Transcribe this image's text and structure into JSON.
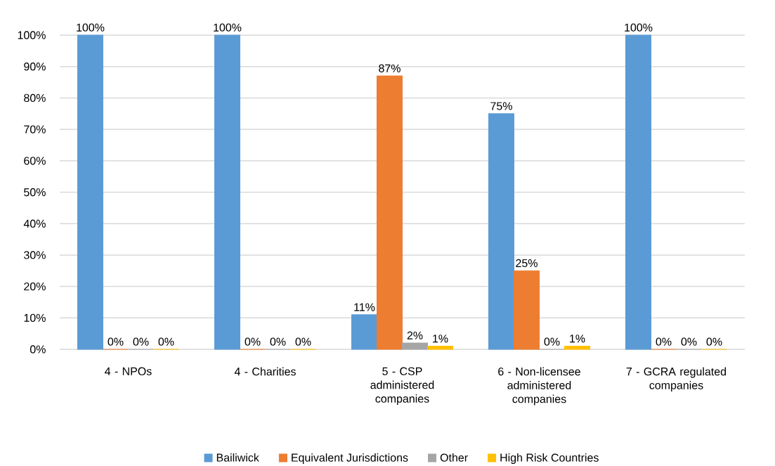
{
  "chart_data": {
    "type": "bar",
    "categories": [
      "4 - NPOs",
      "4 - Charities",
      "5 - CSP administered companies",
      "6 - Non-licensee administered companies",
      "7 - GCRA regulated companies"
    ],
    "series": [
      {
        "name": "Bailiwick",
        "color": "#5b9bd5",
        "values": [
          100,
          100,
          11,
          75,
          100
        ],
        "value_labels": [
          "100%",
          "100%",
          "11%",
          "75%",
          "100%"
        ]
      },
      {
        "name": "Equivalent Jurisdictions",
        "color": "#ed7d31",
        "values": [
          0,
          0,
          87,
          25,
          0
        ],
        "value_labels": [
          "0%",
          "0%",
          "87%",
          "25%",
          "0%"
        ]
      },
      {
        "name": "Other",
        "color": "#a5a5a5",
        "values": [
          0,
          0,
          2,
          0,
          0
        ],
        "value_labels": [
          "0%",
          "0%",
          "2%",
          "0%",
          "0%"
        ]
      },
      {
        "name": "High Risk Countries",
        "color": "#ffc000",
        "values": [
          0,
          0,
          1,
          1,
          0
        ],
        "value_labels": [
          "0%",
          "0%",
          "1%",
          "1%",
          "0%"
        ]
      }
    ],
    "ylim": [
      0,
      100
    ],
    "yticks": [
      {
        "value": 0,
        "label": "0%"
      },
      {
        "value": 10,
        "label": "10%"
      },
      {
        "value": 20,
        "label": "20%"
      },
      {
        "value": 30,
        "label": "30%"
      },
      {
        "value": 40,
        "label": "40%"
      },
      {
        "value": 50,
        "label": "50%"
      },
      {
        "value": 60,
        "label": "60%"
      },
      {
        "value": 70,
        "label": "70%"
      },
      {
        "value": 80,
        "label": "80%"
      },
      {
        "value": 90,
        "label": "90%"
      },
      {
        "value": 100,
        "label": "100%"
      }
    ],
    "grid": "y",
    "legend": "bottom"
  }
}
